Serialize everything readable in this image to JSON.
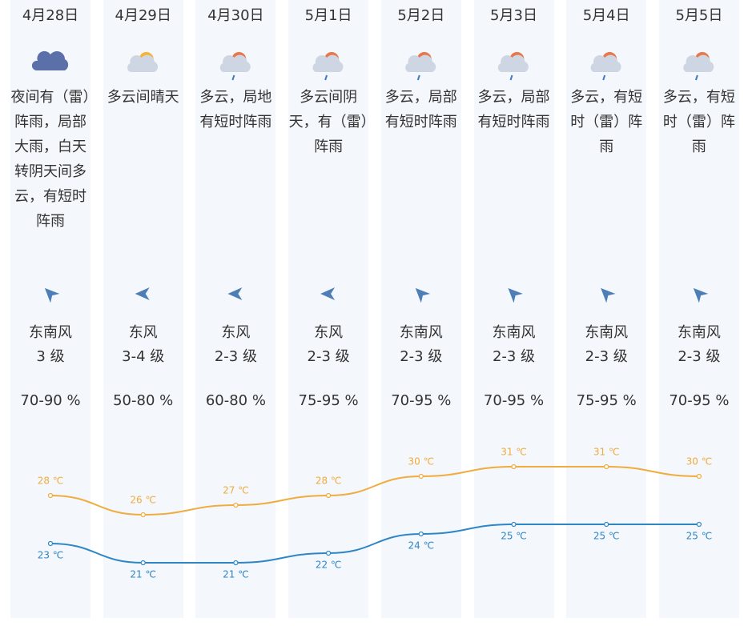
{
  "days": [
    {
      "date": "4月28日",
      "weather": "夜间有（雷）阵雨，局部大雨，白天转阴天间多云，有短时阵雨",
      "wind": "东南风",
      "level": "3 级",
      "humidity": "70-90 %"
    },
    {
      "date": "4月29日",
      "weather": "多云间晴天",
      "wind": "东风",
      "level": "3-4 级",
      "humidity": "50-80 %"
    },
    {
      "date": "4月30日",
      "weather": "多云，局地有短时阵雨",
      "wind": "东风",
      "level": "2-3 级",
      "humidity": "60-80 %"
    },
    {
      "date": "5月1日",
      "weather": "多云间阴天，有（雷）阵雨",
      "wind": "东风",
      "level": "2-3 级",
      "humidity": "75-95 %"
    },
    {
      "date": "5月2日",
      "weather": "多云，局部有短时阵雨",
      "wind": "东南风",
      "level": "2-3 级",
      "humidity": "70-95 %"
    },
    {
      "date": "5月3日",
      "weather": "多云，局部有短时阵雨",
      "wind": "东南风",
      "level": "2-3 级",
      "humidity": "70-95 %"
    },
    {
      "date": "5月4日",
      "weather": "多云，有短时（雷）阵雨",
      "wind": "东南风",
      "level": "2-3 级",
      "humidity": "75-95 %"
    },
    {
      "date": "5月5日",
      "weather": "多云，有短时（雷）阵雨",
      "wind": "东南风",
      "level": "2-3 级",
      "humidity": "70-95 %"
    }
  ],
  "chart_data": {
    "type": "line",
    "series": [
      {
        "color": "#f0ac3e",
        "values": [
          28,
          26,
          27,
          28,
          30,
          31,
          31,
          30
        ],
        "value_labels": [
          "28 ℃",
          "26 ℃",
          "27 ℃",
          "28 ℃",
          "30 ℃",
          "31 ℃",
          "31 ℃",
          "30 ℃"
        ]
      },
      {
        "color": "#2f86c6",
        "values": [
          23,
          21,
          21,
          22,
          24,
          25,
          25,
          25
        ],
        "value_labels": [
          "23 ℃",
          "21 ℃",
          "21 ℃",
          "22 ℃",
          "24 ℃",
          "25 ℃",
          "25 ℃",
          "25 ℃"
        ]
      }
    ]
  }
}
